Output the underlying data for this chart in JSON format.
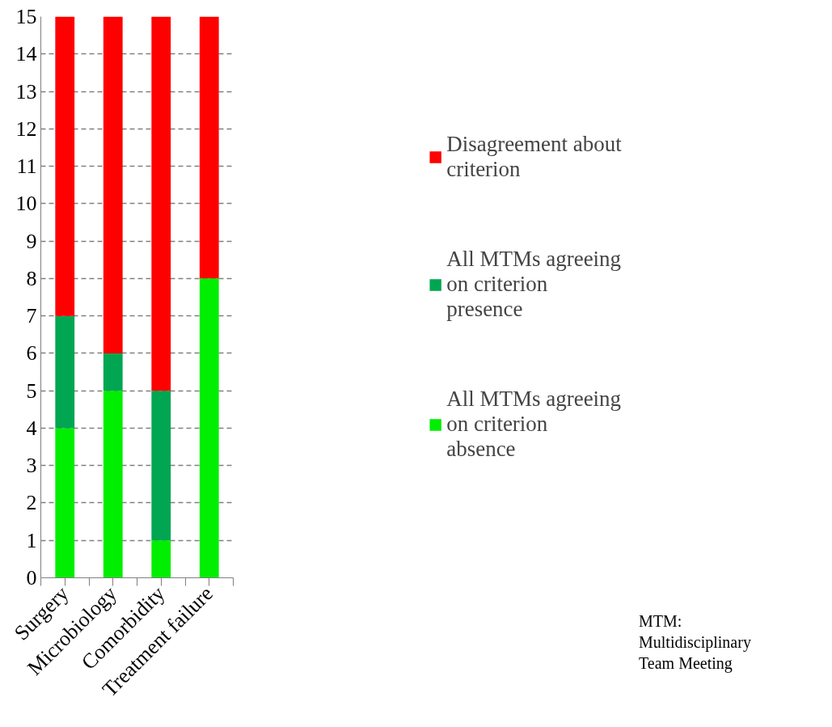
{
  "chart_data": {
    "type": "bar",
    "stacked": true,
    "categories": [
      "Surgery",
      "Microbiology",
      "Comorbidity",
      "Treatment failure"
    ],
    "series": [
      {
        "name": "All MTMs agreeing on criterion absence",
        "color": "#00ee00",
        "values": [
          4,
          5,
          1,
          8
        ]
      },
      {
        "name": "All MTMs agreeing on criterion presence",
        "color": "#00a651",
        "values": [
          3,
          1,
          4,
          0
        ]
      },
      {
        "name": "Disagreement about criterion",
        "color": "#ff0000",
        "values": [
          8,
          9,
          10,
          7
        ]
      }
    ],
    "ylim": [
      0,
      15
    ],
    "yticks": [
      0,
      1,
      2,
      3,
      4,
      5,
      6,
      7,
      8,
      9,
      10,
      11,
      12,
      13,
      14,
      15
    ],
    "grid": "y",
    "legend": "right",
    "annotations": [
      "MTM: Multidisciplinary Team Meeting"
    ]
  }
}
